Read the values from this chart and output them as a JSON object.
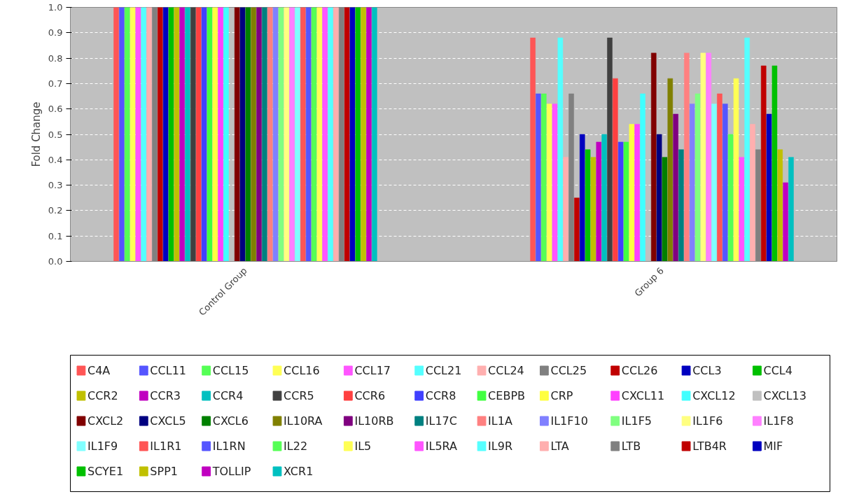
{
  "chart_data": {
    "type": "bar",
    "ylabel": "Fold Change",
    "categories": [
      "Control Group",
      "Group 6"
    ],
    "ylim": [
      0,
      1.0
    ],
    "yticks": [
      {
        "value": 0,
        "label": "0.0"
      },
      0.1,
      0.2,
      0.3,
      0.4,
      0.5,
      0.6,
      0.7,
      0.8,
      0.9,
      {
        "value": 1,
        "label": "1.0"
      }
    ],
    "grid": "y",
    "legend": "bottom",
    "series": [
      {
        "name": "C4A",
        "color": "#ff5555",
        "values": [
          1.0,
          0.88
        ]
      },
      {
        "name": "CCL11",
        "color": "#5555ff",
        "values": [
          1.0,
          0.66
        ]
      },
      {
        "name": "CCL15",
        "color": "#55ff55",
        "values": [
          1.0,
          0.66
        ]
      },
      {
        "name": "CCL16",
        "color": "#ffff55",
        "values": [
          1.0,
          0.62
        ]
      },
      {
        "name": "CCL17",
        "color": "#ff55ff",
        "values": [
          1.0,
          0.62
        ]
      },
      {
        "name": "CCL21",
        "color": "#55ffff",
        "values": [
          1.0,
          0.88
        ]
      },
      {
        "name": "CCL24",
        "color": "#ffafaf",
        "values": [
          1.0,
          0.41
        ]
      },
      {
        "name": "CCL25",
        "color": "#808080",
        "values": [
          1.0,
          0.66
        ]
      },
      {
        "name": "CCL26",
        "color": "#c00000",
        "values": [
          1.0,
          0.25
        ]
      },
      {
        "name": "CCL3",
        "color": "#0000c0",
        "values": [
          1.0,
          0.5
        ]
      },
      {
        "name": "CCL4",
        "color": "#00c000",
        "values": [
          1.0,
          0.44
        ]
      },
      {
        "name": "CCR2",
        "color": "#c0c000",
        "values": [
          1.0,
          0.41
        ]
      },
      {
        "name": "CCR3",
        "color": "#c000c0",
        "values": [
          1.0,
          0.47
        ]
      },
      {
        "name": "CCR4",
        "color": "#00c0c0",
        "values": [
          1.0,
          0.5
        ]
      },
      {
        "name": "CCR5",
        "color": "#404040",
        "values": [
          1.0,
          0.88
        ]
      },
      {
        "name": "CCR6",
        "color": "#ff4040",
        "values": [
          1.0,
          0.72
        ]
      },
      {
        "name": "CCR8",
        "color": "#4040ff",
        "values": [
          1.0,
          0.47
        ]
      },
      {
        "name": "CEBPB",
        "color": "#40ff40",
        "values": [
          1.0,
          0.47
        ]
      },
      {
        "name": "CRP",
        "color": "#ffff40",
        "values": [
          1.0,
          0.54
        ]
      },
      {
        "name": "CXCL11",
        "color": "#ff40ff",
        "values": [
          1.0,
          0.54
        ]
      },
      {
        "name": "CXCL12",
        "color": "#40ffff",
        "values": [
          1.0,
          0.66
        ]
      },
      {
        "name": "CXCL13",
        "color": "#c0c0c0",
        "values": [
          null,
          null
        ]
      },
      {
        "name": "CXCL2",
        "color": "#800000",
        "values": [
          1.0,
          0.82
        ]
      },
      {
        "name": "CXCL5",
        "color": "#000080",
        "values": [
          1.0,
          0.5
        ]
      },
      {
        "name": "CXCL6",
        "color": "#008000",
        "values": [
          1.0,
          0.41
        ]
      },
      {
        "name": "IL10RA",
        "color": "#808000",
        "values": [
          1.0,
          0.72
        ]
      },
      {
        "name": "IL10RB",
        "color": "#800080",
        "values": [
          1.0,
          0.58
        ]
      },
      {
        "name": "IL17C",
        "color": "#008080",
        "values": [
          1.0,
          0.44
        ]
      },
      {
        "name": "IL1A",
        "color": "#ff8080",
        "values": [
          1.0,
          0.82
        ]
      },
      {
        "name": "IL1F10",
        "color": "#8080ff",
        "values": [
          1.0,
          0.62
        ]
      },
      {
        "name": "IL1F5",
        "color": "#80ff80",
        "values": [
          1.0,
          0.66
        ]
      },
      {
        "name": "IL1F6",
        "color": "#ffff80",
        "values": [
          1.0,
          0.82
        ]
      },
      {
        "name": "IL1F8",
        "color": "#ff80ff",
        "values": [
          1.0,
          0.82
        ]
      },
      {
        "name": "IL1F9",
        "color": "#80ffff",
        "values": [
          1.0,
          0.62
        ]
      },
      {
        "name": "IL1R1",
        "color": "#ff5555",
        "values": [
          1.0,
          0.66
        ]
      },
      {
        "name": "IL1RN",
        "color": "#5555ff",
        "values": [
          1.0,
          0.62
        ]
      },
      {
        "name": "IL22",
        "color": "#55ff55",
        "values": [
          1.0,
          0.5
        ]
      },
      {
        "name": "IL5",
        "color": "#ffff55",
        "values": [
          1.0,
          0.72
        ]
      },
      {
        "name": "IL5RA",
        "color": "#ff55ff",
        "values": [
          1.0,
          0.41
        ]
      },
      {
        "name": "IL9R",
        "color": "#55ffff",
        "values": [
          1.0,
          0.88
        ]
      },
      {
        "name": "LTA",
        "color": "#ffafaf",
        "values": [
          1.0,
          0.54
        ]
      },
      {
        "name": "LTB",
        "color": "#808080",
        "values": [
          1.0,
          0.44
        ]
      },
      {
        "name": "LTB4R",
        "color": "#c00000",
        "values": [
          1.0,
          0.77
        ]
      },
      {
        "name": "MIF",
        "color": "#0000c0",
        "values": [
          1.0,
          0.58
        ]
      },
      {
        "name": "SCYE1",
        "color": "#00c000",
        "values": [
          1.0,
          0.77
        ]
      },
      {
        "name": "SPP1",
        "color": "#c0c000",
        "values": [
          1.0,
          0.44
        ]
      },
      {
        "name": "TOLLIP",
        "color": "#c000c0",
        "values": [
          1.0,
          0.31
        ]
      },
      {
        "name": "XCR1",
        "color": "#00c0c0",
        "values": [
          1.0,
          0.41
        ]
      }
    ]
  }
}
